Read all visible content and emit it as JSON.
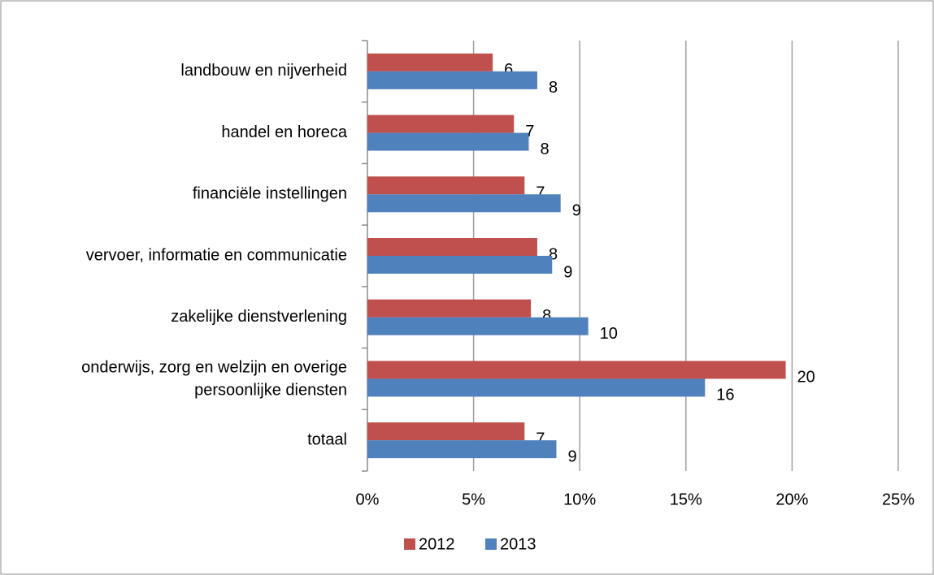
{
  "chart_data": {
    "type": "bar",
    "orientation": "horizontal",
    "categories": [
      "landbouw en nijverheid",
      "handel en horeca",
      "financiële instellingen",
      "vervoer, informatie en communicatie",
      "zakelijke dienstverlening",
      "onderwijs, zorg en welzijn en overige persoonlijke diensten",
      "totaal"
    ],
    "series": [
      {
        "name": "2012",
        "color": "#c0504d",
        "values": [
          5.9,
          6.9,
          7.4,
          8.0,
          7.7,
          19.7,
          7.4
        ],
        "value_labels": [
          "6",
          "7",
          "7",
          "8",
          "8",
          "20",
          "7"
        ]
      },
      {
        "name": "2013",
        "color": "#4f81bd",
        "values": [
          8.0,
          7.6,
          9.1,
          8.7,
          10.4,
          15.9,
          8.9
        ],
        "value_labels": [
          "8",
          "8",
          "9",
          "9",
          "10",
          "16",
          "9"
        ]
      }
    ],
    "xlim": [
      0,
      25
    ],
    "xticks": [
      {
        "value": 0,
        "label": "0%"
      },
      {
        "value": 5,
        "label": "5%"
      },
      {
        "value": 10,
        "label": "10%"
      },
      {
        "value": 15,
        "label": "15%"
      },
      {
        "value": 20,
        "label": "20%"
      },
      {
        "value": 25,
        "label": "25%"
      }
    ],
    "grid": true,
    "legend": "bottom"
  }
}
